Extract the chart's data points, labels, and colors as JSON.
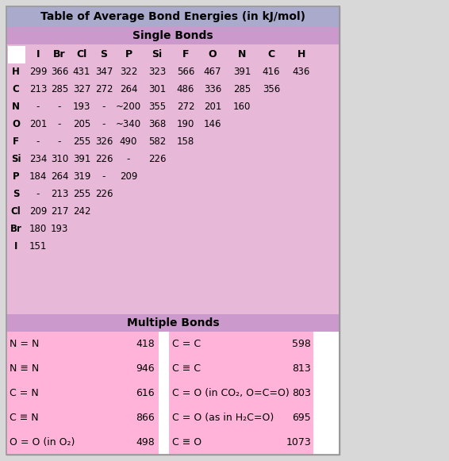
{
  "title": "Table of Average Bond Energies (in kJ/mol)",
  "title_bg": "#aaaacc",
  "single_bonds_header": "Single Bonds",
  "single_bonds_header_bg": "#cc99cc",
  "col_headers": [
    "",
    "I",
    "Br",
    "Cl",
    "S",
    "P",
    "Si",
    "F",
    "O",
    "N",
    "C",
    "H"
  ],
  "row_data": [
    [
      "H",
      "299",
      "366",
      "431",
      "347",
      "322",
      "323",
      "566",
      "467",
      "391",
      "416",
      "436"
    ],
    [
      "C",
      "213",
      "285",
      "327",
      "272",
      "264",
      "301",
      "486",
      "336",
      "285",
      "356",
      ""
    ],
    [
      "N",
      "-",
      "-",
      "193",
      "-",
      "~200",
      "355",
      "272",
      "201",
      "160",
      "",
      ""
    ],
    [
      "O",
      "201",
      "-",
      "205",
      "-",
      "~340",
      "368",
      "190",
      "146",
      "",
      "",
      ""
    ],
    [
      "F",
      "-",
      "-",
      "255",
      "326",
      "490",
      "582",
      "158",
      "",
      "",
      "",
      ""
    ],
    [
      "Si",
      "234",
      "310",
      "391",
      "226",
      "-",
      "226",
      "",
      "",
      "",
      "",
      ""
    ],
    [
      "P",
      "184",
      "264",
      "319",
      "-",
      "209",
      "",
      "",
      "",
      "",
      "",
      ""
    ],
    [
      "S",
      "-",
      "213",
      "255",
      "226",
      "",
      "",
      "",
      "",
      "",
      "",
      ""
    ],
    [
      "Cl",
      "209",
      "217",
      "242",
      "",
      "",
      "",
      "",
      "",
      "",
      "",
      ""
    ],
    [
      "Br",
      "180",
      "193",
      "",
      "",
      "",
      "",
      "",
      "",
      "",
      "",
      ""
    ],
    [
      "I",
      "151",
      "",
      "",
      "",
      "",
      "",
      "",
      "",
      "",
      "",
      ""
    ]
  ],
  "single_table_bg": "#e8b8d8",
  "multiple_bonds_header": "Multiple Bonds",
  "multiple_bonds_header_bg": "#cc99cc",
  "multiple_bonds_bg": "#ffb3d9",
  "multiple_left": [
    [
      "N = N",
      "418"
    ],
    [
      "N ≡ N",
      "946"
    ],
    [
      "C = N",
      "616"
    ],
    [
      "C ≡ N",
      "866"
    ],
    [
      "O = O (in O₂)",
      "498"
    ]
  ],
  "multiple_right": [
    [
      "C = C",
      "598"
    ],
    [
      "C ≡ C",
      "813"
    ],
    [
      "C = O (in CO₂, O=C=O)",
      "803"
    ],
    [
      "C = O (as in H₂C=O)",
      "695"
    ],
    [
      "C ≡ O",
      "1073"
    ]
  ],
  "fig_w": 5.66,
  "fig_h": 5.81,
  "dpi": 100
}
